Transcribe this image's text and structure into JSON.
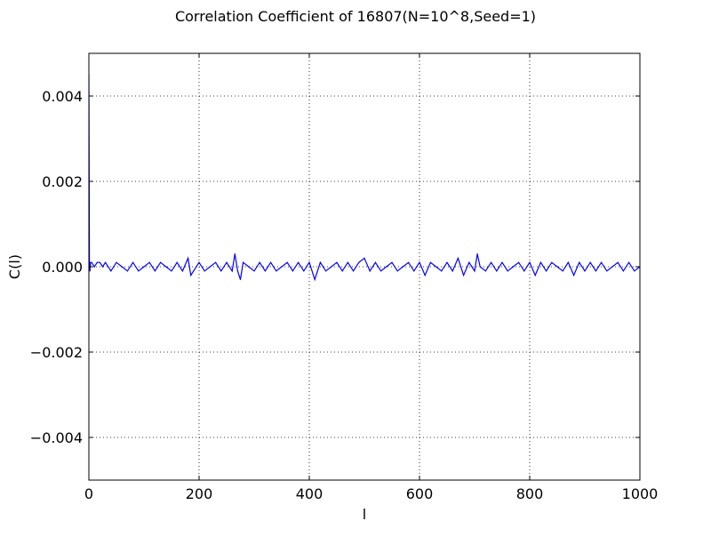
{
  "chart_data": {
    "type": "line",
    "title": "Correlation Coefficient of 16807(N=10^8,Seed=1)",
    "xlabel": "l",
    "ylabel": "C(l)",
    "xlim": [
      0,
      1000
    ],
    "ylim": [
      -0.005,
      0.005
    ],
    "xticks": [
      0,
      200,
      400,
      600,
      800,
      1000
    ],
    "xtick_labels": [
      "0",
      "200",
      "400",
      "600",
      "800",
      "1000"
    ],
    "yticks": [
      0.004,
      0.002,
      0.0,
      -0.002,
      -0.004
    ],
    "ytick_labels": [
      "0.004",
      "0.002",
      "0.000",
      "−0.002",
      "−0.004"
    ],
    "grid": true,
    "grid_style": "dotted",
    "series": [
      {
        "color": "#0000ff",
        "x": [
          0,
          1,
          2,
          3,
          5,
          10,
          15,
          20,
          25,
          30,
          40,
          50,
          60,
          70,
          80,
          90,
          100,
          110,
          120,
          130,
          140,
          150,
          160,
          170,
          180,
          185,
          190,
          200,
          210,
          220,
          230,
          240,
          250,
          260,
          265,
          270,
          275,
          280,
          290,
          300,
          310,
          320,
          330,
          340,
          350,
          360,
          370,
          380,
          390,
          400,
          410,
          420,
          430,
          440,
          450,
          460,
          470,
          480,
          490,
          500,
          510,
          520,
          530,
          540,
          550,
          560,
          570,
          580,
          590,
          600,
          610,
          620,
          630,
          640,
          650,
          660,
          670,
          680,
          690,
          700,
          705,
          710,
          720,
          730,
          740,
          750,
          760,
          770,
          780,
          790,
          800,
          810,
          820,
          830,
          840,
          850,
          860,
          870,
          880,
          890,
          900,
          910,
          920,
          930,
          940,
          950,
          960,
          970,
          980,
          990,
          1000
        ],
        "y": [
          0.0045,
          0.0001,
          -0.0001,
          0.0001,
          0.0001,
          0.0,
          0.0001,
          0.0001,
          0.0,
          0.0001,
          -0.0001,
          0.0001,
          0.0,
          -0.0001,
          0.0001,
          -0.0001,
          0.0,
          0.0001,
          -0.0001,
          0.0001,
          0.0,
          -0.0001,
          0.0001,
          -0.0001,
          0.0002,
          -0.0002,
          -0.0001,
          0.0001,
          -0.0001,
          0.0,
          0.0001,
          -0.0001,
          0.0001,
          -0.0001,
          0.0003,
          -0.0001,
          -0.0003,
          0.0001,
          0.0,
          -0.0001,
          0.0001,
          -0.0001,
          0.0001,
          -0.0001,
          0.0,
          0.0001,
          -0.0001,
          0.0001,
          -0.0001,
          0.0001,
          -0.0003,
          0.0001,
          -0.0001,
          0.0,
          0.0001,
          -0.0001,
          0.0001,
          -0.0001,
          0.0001,
          0.0002,
          -0.0001,
          0.0001,
          -0.0001,
          0.0,
          0.0001,
          -0.0001,
          0.0,
          0.0001,
          -0.0001,
          0.0001,
          -0.0002,
          0.0001,
          0.0,
          -0.0001,
          0.0001,
          -0.0001,
          0.0002,
          -0.0002,
          0.0001,
          -0.0001,
          0.0003,
          0.0,
          -0.0001,
          0.0001,
          -0.0001,
          0.0001,
          -0.0001,
          0.0,
          0.0001,
          -0.0001,
          0.0001,
          -0.0002,
          0.0001,
          -0.0001,
          0.0001,
          0.0,
          -0.0001,
          0.0001,
          -0.0002,
          0.0001,
          -0.0001,
          0.0001,
          -0.0001,
          0.0001,
          -0.0001,
          0.0,
          0.0001,
          -0.0001,
          0.0001,
          -0.0001,
          0.0
        ]
      }
    ]
  }
}
